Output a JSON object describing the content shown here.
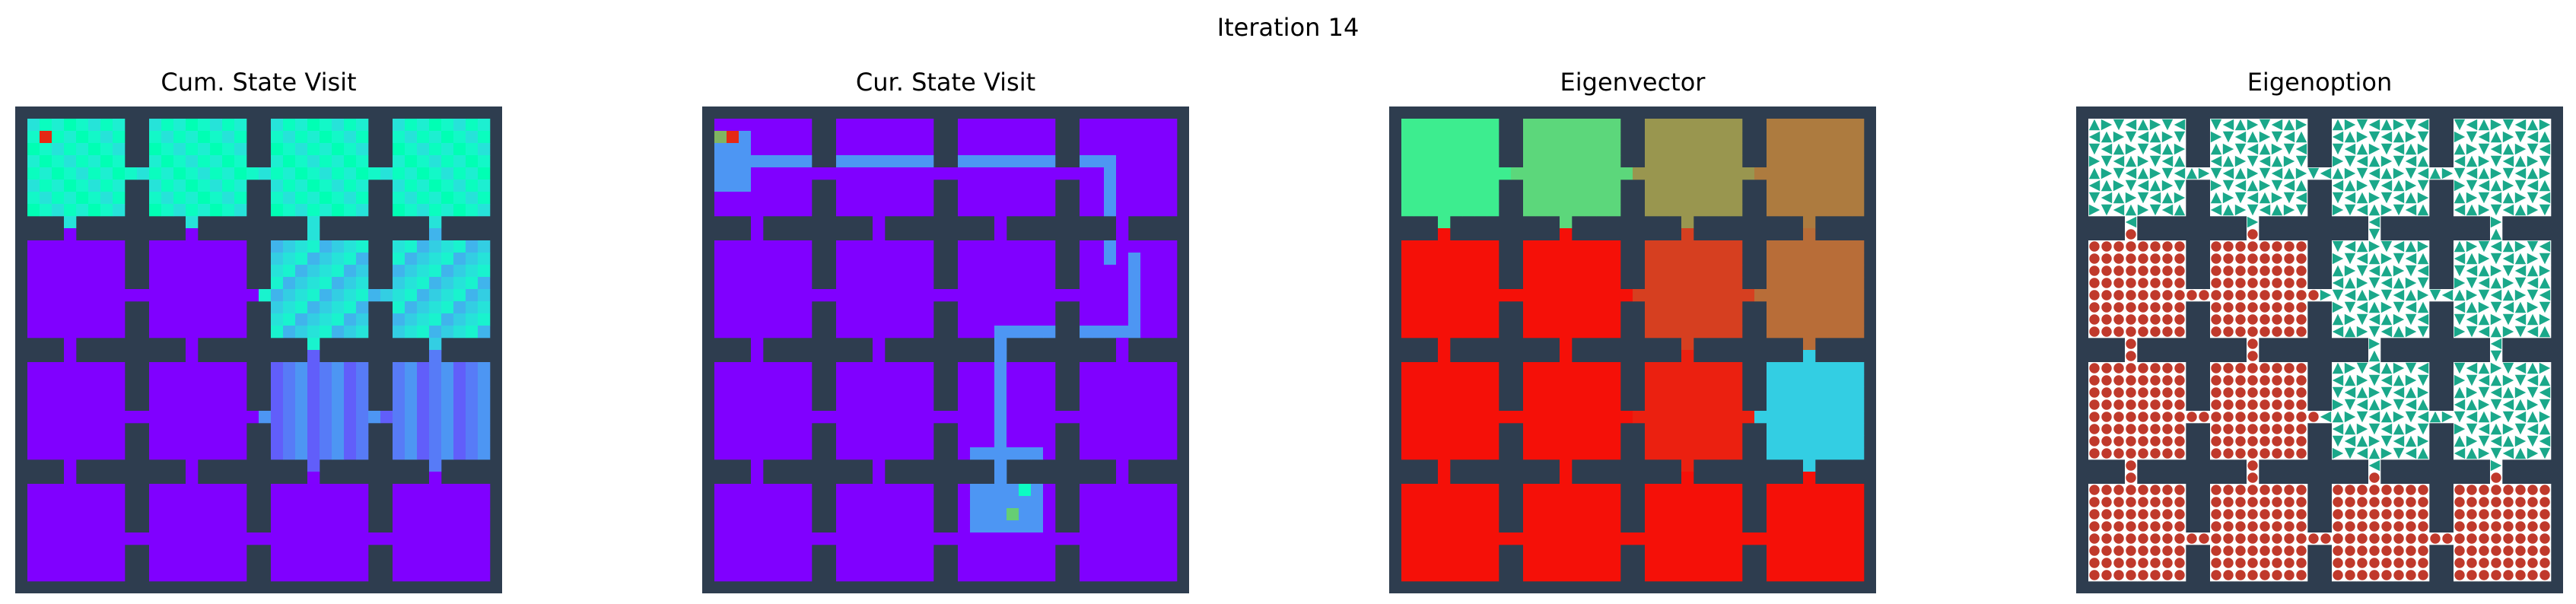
{
  "figure": {
    "suptitle": "Iteration 14"
  },
  "legend": {
    "wall_color": "#2e3d4f",
    "open_color": "#ffffff",
    "arrow_color": "#1aa88a",
    "terminate_color": "#c0392b",
    "terminate_icon": "circle",
    "action_icon": "triangle",
    "colormap": "rainbow"
  },
  "chart_data": [
    {
      "type": "heatmap",
      "title": "Cum. State Visit",
      "grid": {
        "rows": 4,
        "cols": 4,
        "room_size": 8
      },
      "visited_region_values": [
        [
          0.95,
          0.7,
          0.5,
          0.45,
          0.35,
          0.3,
          0.4,
          0.45
        ],
        [
          0.55,
          0.5,
          0.48,
          0.45,
          0.5,
          0.45,
          0.4,
          0.35
        ]
      ],
      "unvisited_value": 0.0
    },
    {
      "type": "heatmap",
      "title": "Cur. State Visit",
      "grid": {
        "rows": 4,
        "cols": 4,
        "room_size": 8
      },
      "path_value": 0.2,
      "peak_values": [
        0.75,
        0.95,
        0.55,
        0.7,
        0.45
      ],
      "unvisited_value": 0.0
    },
    {
      "type": "heatmap",
      "title": "Eigenvector",
      "grid": {
        "rows": 4,
        "cols": 4,
        "room_size": 8
      },
      "room_values": [
        [
          0.62,
          0.68,
          0.8,
          0.84
        ],
        [
          0.98,
          0.98,
          0.92,
          0.86
        ],
        [
          0.98,
          0.98,
          0.96,
          0.3
        ],
        [
          0.98,
          0.98,
          0.98,
          0.98
        ]
      ]
    },
    {
      "type": "heatmap",
      "title": "Eigenoption",
      "grid": {
        "rows": 4,
        "cols": 4,
        "room_size": 8
      },
      "room_policy": [
        [
          "arrow",
          "arrow",
          "arrow",
          "arrow"
        ],
        [
          "terminate",
          "terminate",
          "arrow",
          "arrow"
        ],
        [
          "terminate",
          "terminate",
          "arrow",
          "arrow"
        ],
        [
          "terminate",
          "terminate",
          "terminate",
          "terminate"
        ]
      ]
    }
  ]
}
